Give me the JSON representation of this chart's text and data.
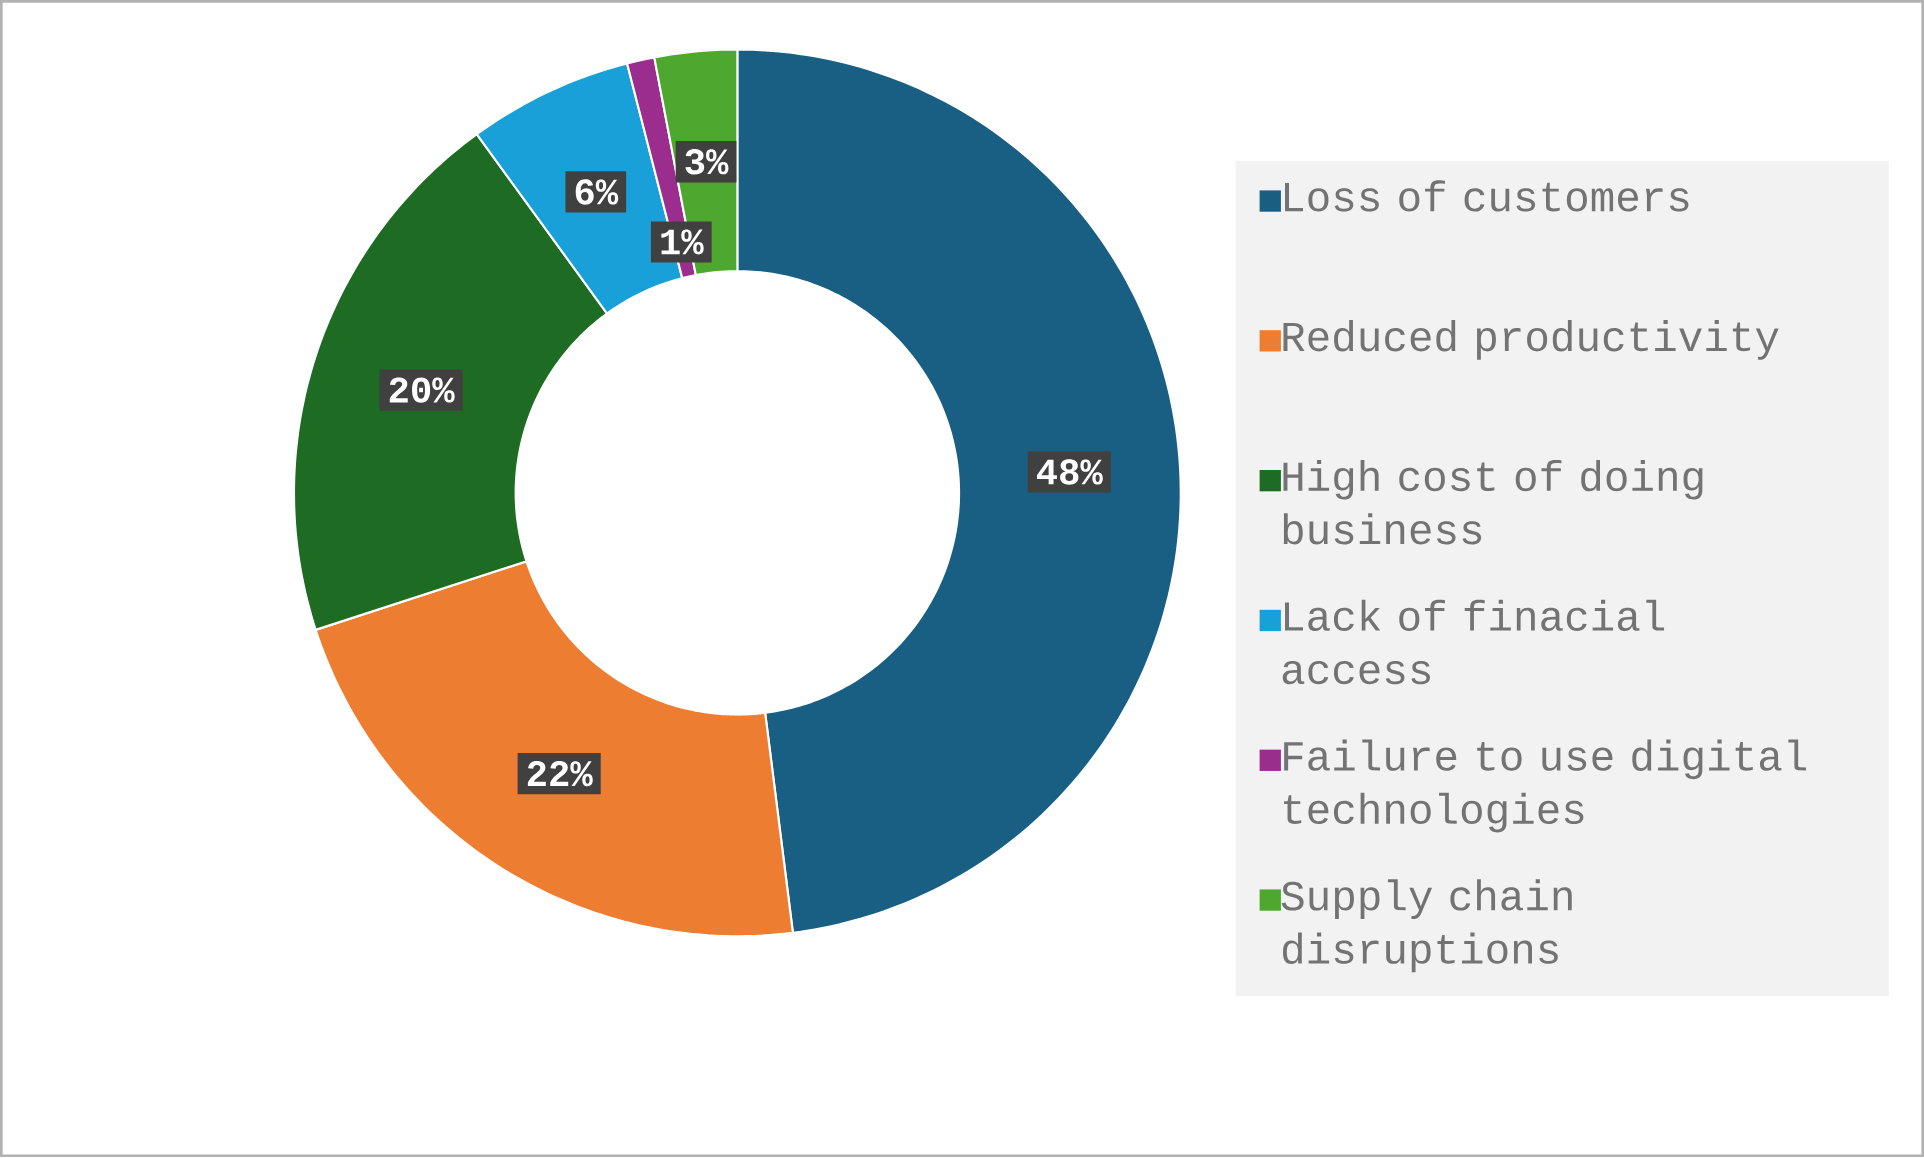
{
  "chart_data": {
    "type": "donut",
    "categories": [
      "Loss of customers",
      "Reduced productivity",
      "High cost of doing business",
      "Lack of finacial access",
      "Failure to use digital technologies",
      "Supply chain disruptions"
    ],
    "values": [
      48,
      22,
      20,
      6,
      1,
      3
    ],
    "value_labels": [
      "48%",
      "22%",
      "20%",
      "6%",
      "1%",
      "3%"
    ],
    "colors": [
      "#185f83",
      "#ed7d31",
      "#1e6b23",
      "#1aa0d8",
      "#9b2d8e",
      "#4ea72e"
    ],
    "legend": "right"
  }
}
